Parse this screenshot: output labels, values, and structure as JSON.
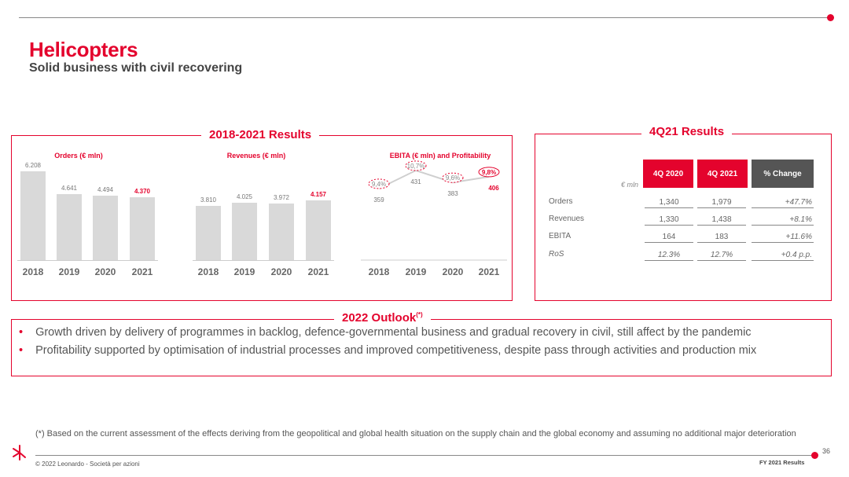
{
  "header": {
    "title": "Helicopters",
    "subtitle": "Solid business with civil recovering"
  },
  "results_box": {
    "title": "2018-2021 Results",
    "years": [
      "2018",
      "2019",
      "2020",
      "2021"
    ]
  },
  "chart_data": [
    {
      "type": "bar",
      "title": "Orders (€ mln)",
      "categories": [
        "2018",
        "2019",
        "2020",
        "2021"
      ],
      "values": [
        6.208,
        4.641,
        4.494,
        4.37
      ],
      "labels": [
        "6.208",
        "4.641",
        "4.494",
        "4.370"
      ]
    },
    {
      "type": "bar",
      "title": "Revenues (€ mln)",
      "categories": [
        "2018",
        "2019",
        "2020",
        "2021"
      ],
      "values": [
        3.81,
        4.025,
        3.972,
        4.157
      ],
      "labels": [
        "3.810",
        "4.025",
        "3.972",
        "4.157"
      ]
    },
    {
      "type": "line",
      "title": "EBITA (€ mln) and Profitability",
      "categories": [
        "2018",
        "2019",
        "2020",
        "2021"
      ],
      "values": [
        359,
        431,
        383,
        406
      ],
      "labels": [
        "359",
        "431",
        "383",
        "406"
      ],
      "profitability": [
        "9,4%",
        "10,7%",
        "9,6%",
        "9,8%"
      ]
    }
  ],
  "q4_box": {
    "title": "4Q21 Results",
    "unit": "€ mln",
    "headers": [
      "4Q 2020",
      "4Q 2021",
      "% Change"
    ],
    "header_colors": [
      "#e4032d",
      "#e4032d",
      "#555555"
    ],
    "rows": [
      {
        "label": "Orders",
        "v1": "1,340",
        "v2": "1,979",
        "chg": "+47.7%"
      },
      {
        "label": "Revenues",
        "v1": "1,330",
        "v2": "1,438",
        "chg": "+8.1%"
      },
      {
        "label": "EBITA",
        "v1": "164",
        "v2": "183",
        "chg": "+11.6%"
      },
      {
        "label": "RoS",
        "v1": "12.3%",
        "v2": "12.7%",
        "chg": "+0.4 p.p."
      }
    ]
  },
  "outlook": {
    "title": "2022 Outlook",
    "title_sup": "(*)",
    "bullets": [
      "Growth driven by delivery of programmes in backlog, defence-governmental business and gradual recovery in civil, still affect by the pandemic",
      "Profitability supported by optimisation of industrial processes and improved competitiveness, despite pass through activities and production mix"
    ]
  },
  "footer": {
    "footnote": "(*) Based on the current assessment of the effects deriving from the geopolitical and global health situation on the supply chain and the global economy and assuming no additional major deterioration",
    "copyright": "© 2022 Leonardo - Società per azioni",
    "page": "36",
    "report": "FY 2021 Results"
  },
  "colors": {
    "accent": "#e4032d",
    "bar": "#d9d9d9",
    "dark_header": "#555555"
  }
}
